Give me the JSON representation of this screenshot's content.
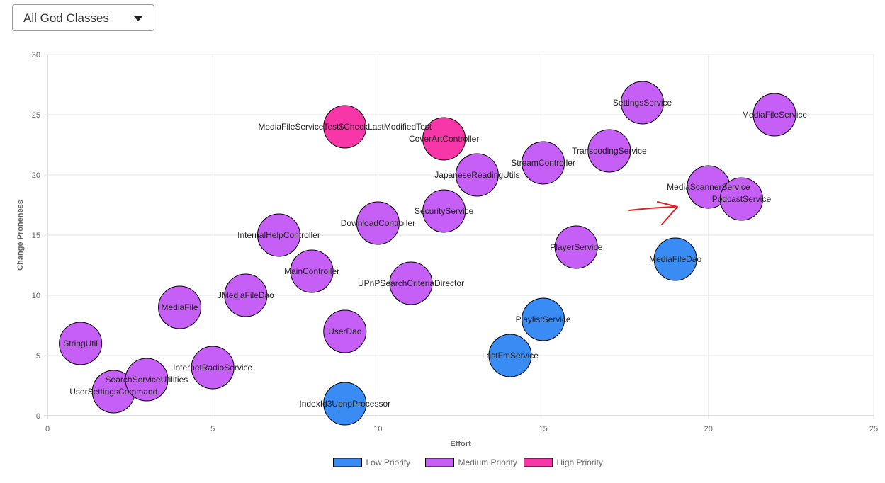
{
  "filter": {
    "selected": "All God Classes"
  },
  "colors": {
    "low": "#3a8cf5",
    "medium": "#c65ff5",
    "high": "#f736a8",
    "grid": "#e6e6e6",
    "annotation": "#e02020"
  },
  "chart_data": {
    "type": "bubble",
    "xlabel": "Effort",
    "ylabel": "Change Proneness",
    "xlim": [
      0,
      25
    ],
    "ylim": [
      0,
      30
    ],
    "xticks": [
      0,
      5,
      10,
      15,
      20,
      25
    ],
    "yticks": [
      0,
      5,
      10,
      15,
      20,
      25,
      30
    ],
    "legend": [
      {
        "key": "low",
        "label": "Low Priority"
      },
      {
        "key": "medium",
        "label": "Medium Priority"
      },
      {
        "key": "high",
        "label": "High Priority"
      }
    ],
    "points": [
      {
        "name": "StringUtil",
        "x": 1,
        "y": 6,
        "priority": "medium"
      },
      {
        "name": "UserSettingsCommand",
        "x": 2,
        "y": 2,
        "priority": "medium"
      },
      {
        "name": "SearchServiceUtilities",
        "x": 3,
        "y": 3,
        "priority": "medium"
      },
      {
        "name": "MediaFile",
        "x": 4,
        "y": 9,
        "priority": "medium"
      },
      {
        "name": "InternetRadioService",
        "x": 5,
        "y": 4,
        "priority": "medium"
      },
      {
        "name": "JMediaFileDao",
        "x": 6,
        "y": 10,
        "priority": "medium"
      },
      {
        "name": "InternalHelpController",
        "x": 7,
        "y": 15,
        "priority": "medium"
      },
      {
        "name": "MainController",
        "x": 8,
        "y": 12,
        "priority": "medium"
      },
      {
        "name": "MediaFileServiceTest$CheckLastModifiedTest",
        "x": 9,
        "y": 24,
        "priority": "high"
      },
      {
        "name": "UserDao",
        "x": 9,
        "y": 7,
        "priority": "medium"
      },
      {
        "name": "IndexId3UpnpProcessor",
        "x": 9,
        "y": 1,
        "priority": "low"
      },
      {
        "name": "DownloadController",
        "x": 10,
        "y": 16,
        "priority": "medium"
      },
      {
        "name": "UPnPSearchCriteriaDirector",
        "x": 11,
        "y": 11,
        "priority": "medium"
      },
      {
        "name": "CoverArtController",
        "x": 12,
        "y": 23,
        "priority": "high"
      },
      {
        "name": "SecurityService",
        "x": 12,
        "y": 17,
        "priority": "medium"
      },
      {
        "name": "JapaneseReadingUtils",
        "x": 13,
        "y": 20,
        "priority": "medium"
      },
      {
        "name": "LastFmService",
        "x": 14,
        "y": 5,
        "priority": "low"
      },
      {
        "name": "StreamController",
        "x": 15,
        "y": 21,
        "priority": "medium"
      },
      {
        "name": "PlaylistService",
        "x": 15,
        "y": 8,
        "priority": "low"
      },
      {
        "name": "PlayerService",
        "x": 16,
        "y": 14,
        "priority": "medium"
      },
      {
        "name": "TranscodingService",
        "x": 17,
        "y": 22,
        "priority": "medium"
      },
      {
        "name": "SettingsService",
        "x": 18,
        "y": 26,
        "priority": "medium"
      },
      {
        "name": "MediaFileDao",
        "x": 19,
        "y": 13,
        "priority": "low"
      },
      {
        "name": "MediaScannerService",
        "x": 20,
        "y": 19,
        "priority": "medium"
      },
      {
        "name": "PodcastService",
        "x": 21,
        "y": 18,
        "priority": "medium"
      },
      {
        "name": "MediaFileService",
        "x": 22,
        "y": 25,
        "priority": "medium"
      }
    ]
  }
}
